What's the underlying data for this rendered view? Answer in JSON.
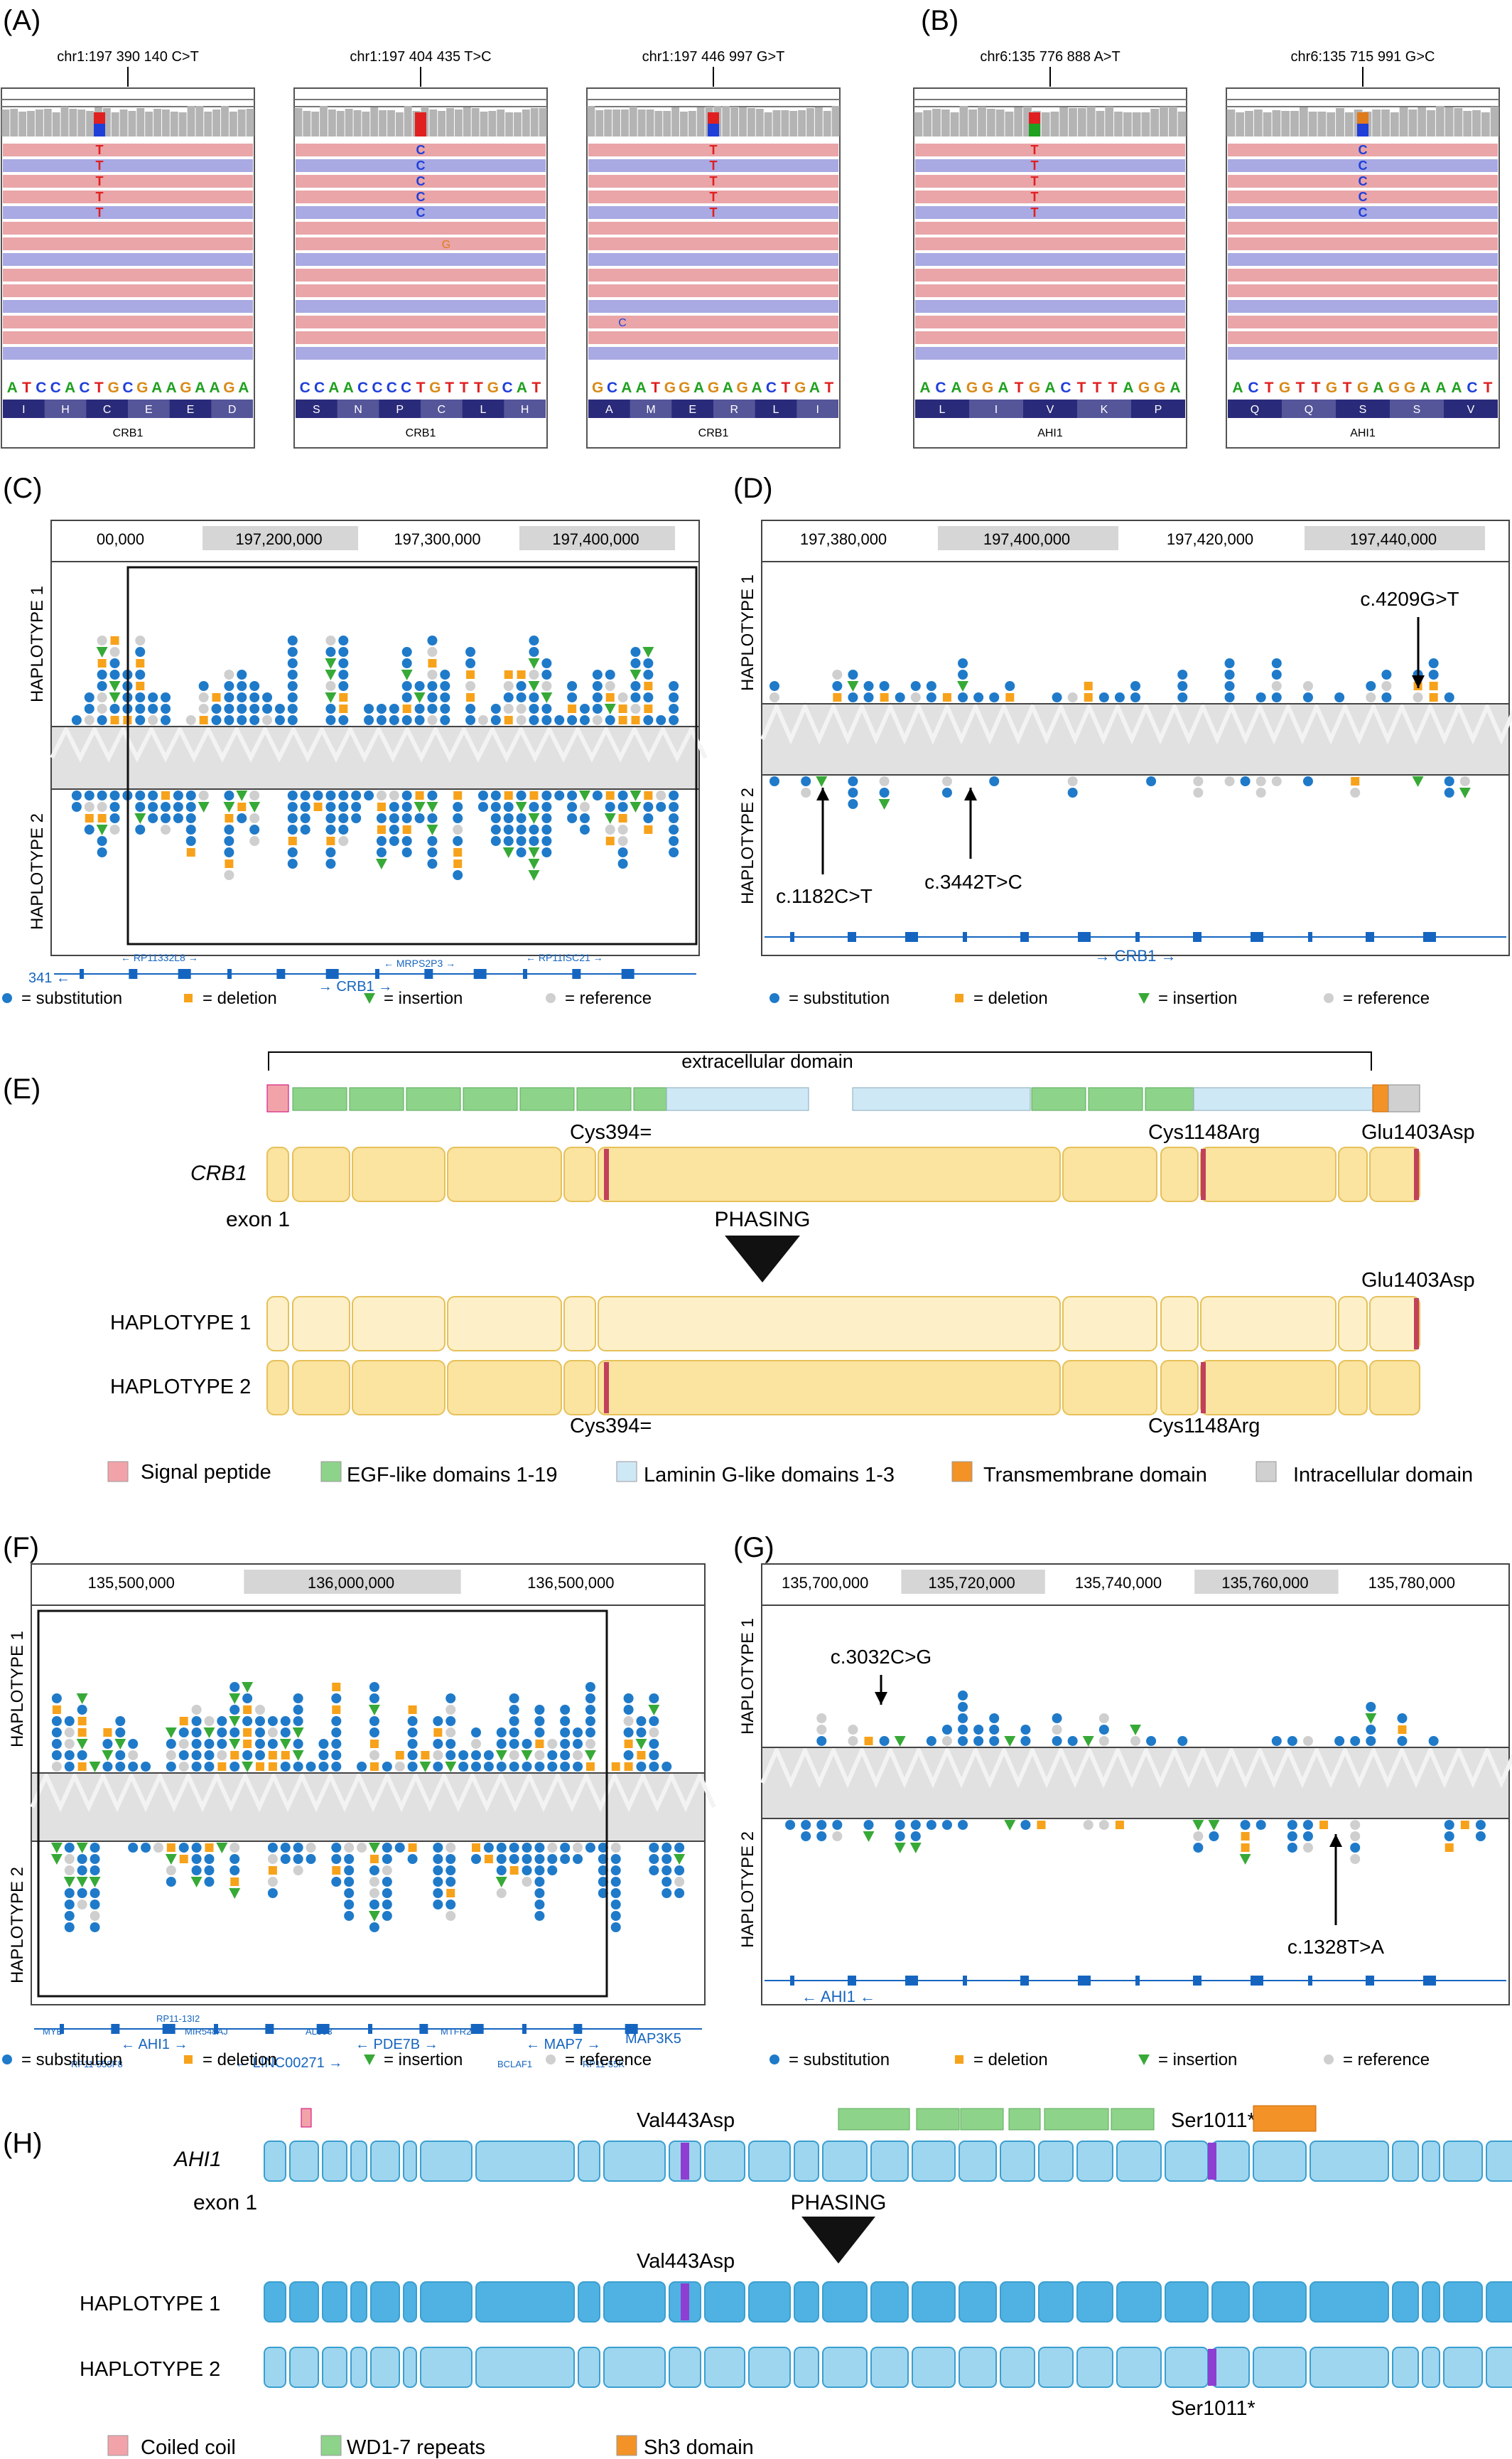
{
  "panels": {
    "A": "(A)",
    "B": "(B)",
    "C": "(C)",
    "D": "(D)",
    "E": "(E)",
    "F": "(F)",
    "G": "(G)",
    "H": "(H)"
  },
  "colors": {
    "substitution": "#1f7ac9",
    "deletion": "#f7a21b",
    "insertion": "#37a937",
    "reference": "#cfcfcf",
    "read_pink": "#e9a5a8",
    "read_blue": "#a9a9e3",
    "exon_yellow": "#fbe3a0",
    "exon_blue": "#9ed6ef",
    "signal": "#f2a3aa",
    "egf": "#8dd38a",
    "laminin": "#cfe8f6",
    "transmembrane": "#f29227",
    "intracellular": "#d0d0d0",
    "variant_mark": "#c1415a",
    "variant_purple": "#8e3ed1"
  },
  "igv": {
    "A": [
      {
        "locus": "chr1:197 390 140 C>T",
        "bases": "ATCCACTGCGAAGAAGA",
        "aa": [
          "I",
          "H",
          "C",
          "E",
          "E",
          "D"
        ],
        "gene": "CRB1",
        "alt": "T"
      },
      {
        "locus": "chr1:197 404 435 T>C",
        "bases": "CCAACCCCTGTTTGCAT",
        "aa": [
          "S",
          "N",
          "P",
          "C",
          "L",
          "H"
        ],
        "gene": "CRB1",
        "alt": "C"
      },
      {
        "locus": "chr1:197 446 997 G>T",
        "bases": "GCAATGGAGAGACTGAT",
        "aa": [
          "A",
          "M",
          "E",
          "R",
          "L",
          "I"
        ],
        "gene": "CRB1",
        "alt": "T"
      }
    ],
    "B": [
      {
        "locus": "chr6:135 776 888 A>T",
        "bases": "ACAGGATGACTTTAGGA",
        "aa": [
          "L",
          "I",
          "V",
          "K",
          "P"
        ],
        "gene": "AHI1",
        "alt": "T"
      },
      {
        "locus": "chr6:135 715 991 G>C",
        "bases": "ACTGTTGTGAGGAAACT",
        "aa": [
          "Q",
          "Q",
          "S",
          "S",
          "V"
        ],
        "gene": "AHI1",
        "alt": "C"
      }
    ],
    "extra_read_base_1": "G",
    "extra_read_base_2": "C"
  },
  "tracks": {
    "C": {
      "ticks": [
        "00,000",
        "197,200,000",
        "197,300,000",
        "197,400,000"
      ],
      "genes": [
        "← RP11332L8 →",
        "← RP11ISC21 →",
        "341 ←",
        "← MRPS2P3 →",
        "→ CRB1 →"
      ]
    },
    "D": {
      "ticks": [
        "197,380,000",
        "197,400,000",
        "197,420,000",
        "197,440,000"
      ],
      "variants": [
        "c.4209G>T",
        "c.1182C>T",
        "c.3442T>C"
      ],
      "gene": "→ CRB1 →"
    },
    "F": {
      "ticks": [
        "135,500,000",
        "136,000,000",
        "136,500,000"
      ],
      "genes": [
        "← AHI1 →",
        "← PDE7B →",
        "← MAP7 →",
        "MAP3K5",
        "← LINC00271 →",
        "MYB",
        "RP11-558F8",
        "MIR548AJ",
        "RP11-13I2",
        "AL353",
        "MTFR2",
        "BCLAF1",
        "RP11-55K"
      ]
    },
    "G": {
      "ticks": [
        "135,700,000",
        "135,720,000",
        "135,740,000",
        "135,760,000",
        "135,780,000"
      ],
      "variants": [
        "c.3032C>G",
        "c.1328T>A"
      ],
      "gene": "← AHI1 ←"
    },
    "hap1": "HAPLOTYPE 1",
    "hap2": "HAPLOTYPE 2"
  },
  "legend_marks": {
    "substitution": "= substitution",
    "deletion": "= deletion",
    "insertion": "= insertion",
    "reference": "= reference"
  },
  "E": {
    "domain_label": "extracellular domain",
    "gene": "CRB1",
    "exon1": "exon 1",
    "phasing": "PHASING",
    "variants": [
      "Cys394=",
      "Cys1148Arg",
      "Glu1403Asp"
    ],
    "hap1": "HAPLOTYPE 1",
    "hap2": "HAPLOTYPE 2",
    "legend": [
      "Signal peptide",
      "EGF-like domains 1-19",
      "Laminin G-like domains 1-3",
      "Transmembrane domain",
      "Intracellular domain"
    ]
  },
  "H": {
    "gene": "AHI1",
    "exon1": "exon 1",
    "phasing": "PHASING",
    "variants": [
      "Val443Asp",
      "Ser1011*"
    ],
    "hap1": "HAPLOTYPE 1",
    "hap2": "HAPLOTYPE 2",
    "legend": [
      "Coiled coil",
      "WD1-7 repeats",
      "Sh3 domain"
    ]
  }
}
